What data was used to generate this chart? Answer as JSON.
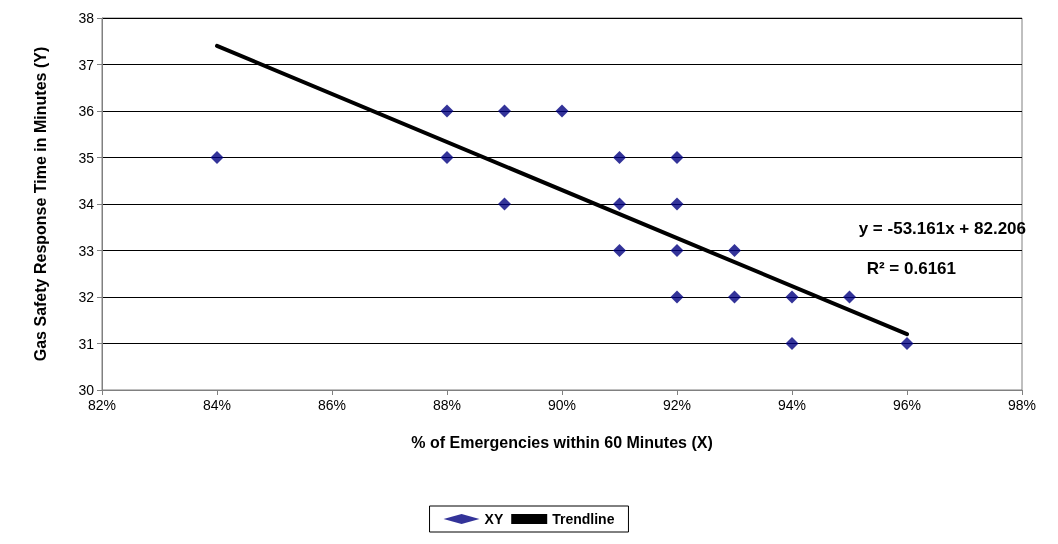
{
  "chart_data": {
    "type": "scatter",
    "xlabel": "% of Emergencies within 60 Minutes (X)",
    "ylabel": "Gas Safety Response Time in Minutes (Y)",
    "series": [
      {
        "name": "XY",
        "color": "#000080",
        "marker": "diamond",
        "x": [
          84,
          88,
          88,
          89,
          89,
          90,
          91,
          91,
          91,
          92,
          92,
          92,
          92,
          93,
          93,
          94,
          94,
          95,
          96
        ],
        "values": [
          35,
          36,
          35,
          36,
          34,
          36,
          35,
          34,
          33,
          35,
          34,
          33,
          32,
          33,
          32,
          32,
          31,
          32,
          31
        ]
      },
      {
        "name": "Trendline",
        "type": "line",
        "color": "#000000",
        "marker": "none",
        "line_style": "solid",
        "x": [
          84,
          96
        ],
        "values": [
          37.4,
          31.2
        ]
      }
    ],
    "xlim": [
      82,
      98
    ],
    "xticks": [
      {
        "value": 82,
        "label": "82%"
      },
      {
        "value": 84,
        "label": "84%"
      },
      {
        "value": 86,
        "label": "86%"
      },
      {
        "value": 88,
        "label": "88%"
      },
      {
        "value": 90,
        "label": "90%"
      },
      {
        "value": 92,
        "label": "92%"
      },
      {
        "value": 94,
        "label": "94%"
      },
      {
        "value": 96,
        "label": "96%"
      },
      {
        "value": 98,
        "label": "98%"
      }
    ],
    "ylim": [
      30,
      38
    ],
    "yticks": [
      30,
      31,
      32,
      33,
      34,
      35,
      36,
      37,
      38
    ],
    "grid": "y",
    "legend": "bottom",
    "annotations": [
      "y = -53.161x + 82.206",
      "R² = 0.6161"
    ]
  }
}
